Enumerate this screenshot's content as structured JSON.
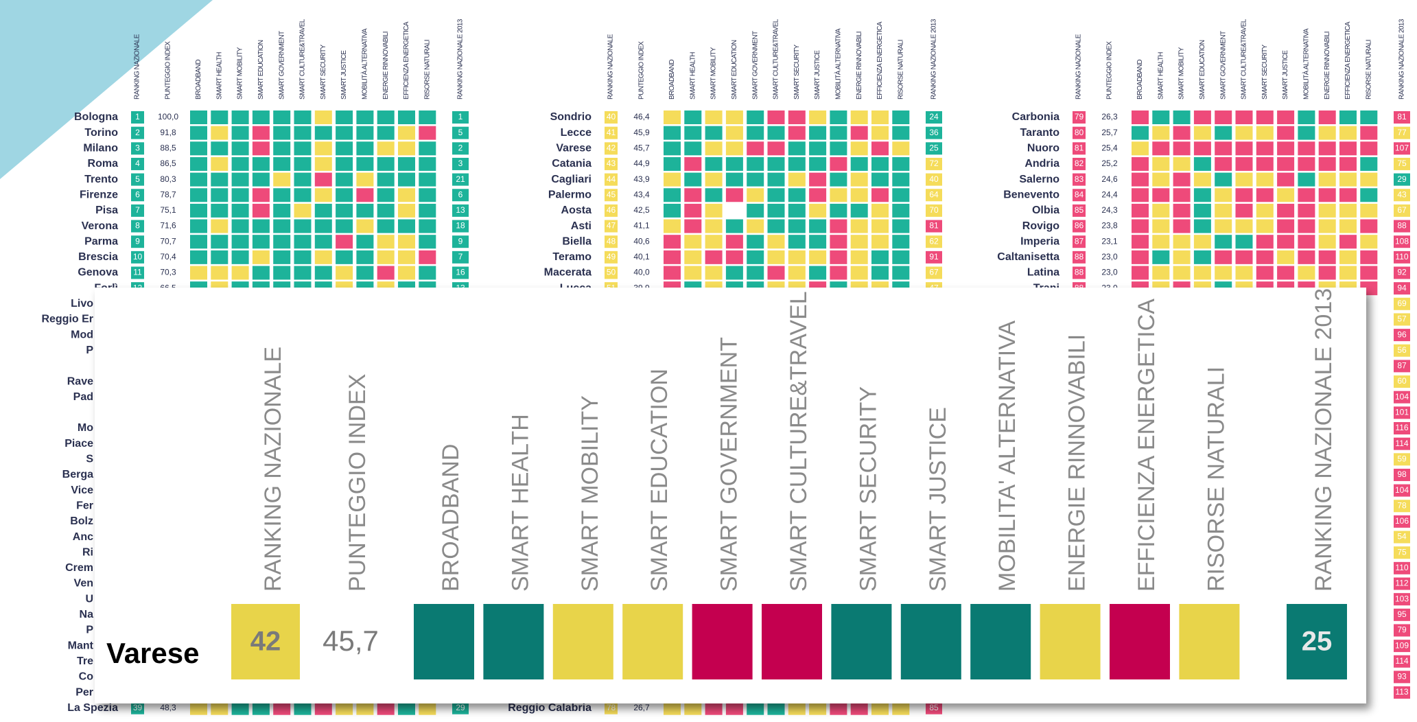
{
  "headers": [
    "RANKING NAZIONALE",
    "PUNTEGGIO INDEX",
    "BROADBAND",
    "SMART HEALTH",
    "SMART MOBILITY",
    "SMART EDUCATION",
    "SMART GOVERNMENT",
    "SMART CULTURE&TRAVEL",
    "SMART SECURITY",
    "SMART JUSTICE",
    "MOBILITÀ ALTERNATIVA",
    "ENERGIE RINNOVABILI",
    "EFFICIENZA ENERGETICA",
    "RISORSE NATURALI",
    "RANKING NAZIONALE 2013"
  ],
  "panels": [
    {
      "rank_color": "g",
      "rows": [
        {
          "name": "Bologna",
          "rank": "1",
          "score": "100,0",
          "cells": "ggggggyggggg",
          "rank2013": "1",
          "color2013": "g"
        },
        {
          "name": "Torino",
          "rank": "2",
          "score": "91,8",
          "cells": "gygrggggggyr",
          "rank2013": "5",
          "color2013": "g"
        },
        {
          "name": "Milano",
          "rank": "3",
          "score": "88,5",
          "cells": "gggrggyggyyg",
          "rank2013": "2",
          "color2013": "g"
        },
        {
          "name": "Roma",
          "rank": "4",
          "score": "86,5",
          "cells": "gyggggyggggg",
          "rank2013": "3",
          "color2013": "g"
        },
        {
          "name": "Trento",
          "rank": "5",
          "score": "80,3",
          "cells": "ggggygrgyggg",
          "rank2013": "21",
          "color2013": "g"
        },
        {
          "name": "Firenze",
          "rank": "6",
          "score": "78,7",
          "cells": "gggrggygrgyg",
          "rank2013": "6",
          "color2013": "g"
        },
        {
          "name": "Pisa",
          "rank": "7",
          "score": "75,1",
          "cells": "gggrgyggggyg",
          "rank2013": "13",
          "color2013": "g"
        },
        {
          "name": "Verona",
          "rank": "8",
          "score": "71,6",
          "cells": "gyggggggyggg",
          "rank2013": "18",
          "color2013": "g"
        },
        {
          "name": "Parma",
          "rank": "9",
          "score": "70,7",
          "cells": "gggggggrgyyg",
          "rank2013": "9",
          "color2013": "g"
        },
        {
          "name": "Brescia",
          "rank": "10",
          "score": "70,4",
          "cells": "gggyggyggyyr",
          "rank2013": "7",
          "color2013": "g"
        },
        {
          "name": "Genova",
          "rank": "11",
          "score": "70,3",
          "cells": "yyyggggygryg",
          "rank2013": "16",
          "color2013": "g"
        },
        {
          "name": "Forlì",
          "rank": "12",
          "score": "66,5",
          "cells": "gygggggygygg",
          "rank2013": "13",
          "color2013": "g"
        }
      ]
    },
    {
      "rank_color": "y",
      "rows": [
        {
          "name": "Sondrio",
          "rank": "40",
          "score": "46,4",
          "cells": "ygyygrrygyyg",
          "rank2013": "24",
          "color2013": "g"
        },
        {
          "name": "Lecce",
          "rank": "41",
          "score": "45,9",
          "cells": "gggyggrggryg",
          "rank2013": "36",
          "color2013": "g"
        },
        {
          "name": "Varese",
          "rank": "42",
          "score": "45,7",
          "cells": "ggyyrrgggyry",
          "rank2013": "25",
          "color2013": "g"
        },
        {
          "name": "Catania",
          "rank": "43",
          "score": "44,9",
          "cells": "grggggggrggg",
          "rank2013": "72",
          "color2013": "y"
        },
        {
          "name": "Cagliari",
          "rank": "44",
          "score": "43,9",
          "cells": "ygygggyrgygg",
          "rank2013": "40",
          "color2013": "y"
        },
        {
          "name": "Palermo",
          "rank": "45",
          "score": "43,4",
          "cells": "grgryggryyrg",
          "rank2013": "64",
          "color2013": "y"
        },
        {
          "name": "Aosta",
          "rank": "46",
          "score": "42,5",
          "cells": "grywgggyggyg",
          "rank2013": "70",
          "color2013": "y"
        },
        {
          "name": "Asti",
          "rank": "47",
          "score": "41,1",
          "cells": "yrygygggryyg",
          "rank2013": "81",
          "color2013": "r"
        },
        {
          "name": "Biella",
          "rank": "48",
          "score": "40,6",
          "cells": "ryyrgyggryyg",
          "rank2013": "62",
          "color2013": "y"
        },
        {
          "name": "Teramo",
          "rank": "49",
          "score": "40,1",
          "cells": "ryrrgyyyrygg",
          "rank2013": "91",
          "color2013": "r"
        },
        {
          "name": "Macerata",
          "rank": "50",
          "score": "40,0",
          "cells": "ryyggrygrygg",
          "rank2013": "67",
          "color2013": "y"
        },
        {
          "name": "Lucca",
          "rank": "51",
          "score": "39,9",
          "cells": "rgyggyyrgyyg",
          "rank2013": "47",
          "color2013": "y"
        }
      ]
    },
    {
      "rank_color": "r",
      "rows": [
        {
          "name": "Carbonia",
          "rank": "79",
          "score": "26,3",
          "cells": "rggrrrrrgrgg",
          "rank2013": "81",
          "color2013": "r"
        },
        {
          "name": "Taranto",
          "rank": "80",
          "score": "25,7",
          "cells": "gyrygyyrgyyr",
          "rank2013": "77",
          "color2013": "y"
        },
        {
          "name": "Nuoro",
          "rank": "81",
          "score": "25,4",
          "cells": "yrrrrrrrrrrr",
          "rank2013": "107",
          "color2013": "r"
        },
        {
          "name": "Andria",
          "rank": "82",
          "score": "25,2",
          "cells": "ryygrrrrrrrg",
          "rank2013": "75",
          "color2013": "y"
        },
        {
          "name": "Salerno",
          "rank": "83",
          "score": "24,6",
          "cells": "ryrygyyrgyyy",
          "rank2013": "29",
          "color2013": "g"
        },
        {
          "name": "Benevento",
          "rank": "84",
          "score": "24,4",
          "cells": "rrrgyrryrrrg",
          "rank2013": "43",
          "color2013": "y"
        },
        {
          "name": "Olbia",
          "rank": "85",
          "score": "24,3",
          "cells": "ryrgyryrryyy",
          "rank2013": "67",
          "color2013": "y"
        },
        {
          "name": "Rovigo",
          "rank": "86",
          "score": "23,8",
          "cells": "ryrgyyyrryyr",
          "rank2013": "88",
          "color2013": "r"
        },
        {
          "name": "Imperia",
          "rank": "87",
          "score": "23,1",
          "cells": "ryyyggrrryry",
          "rank2013": "108",
          "color2013": "r"
        },
        {
          "name": "Caltanisetta",
          "rank": "88",
          "score": "23,0",
          "cells": "rgygrrryrryr",
          "rank2013": "110",
          "color2013": "r"
        },
        {
          "name": "Latina",
          "rank": "88",
          "score": "23,0",
          "cells": "ryyyyyrryryr",
          "rank2013": "92",
          "color2013": "r"
        },
        {
          "name": "Trani",
          "rank": "88",
          "score": "23,0",
          "cells": "ryrygyrrryyr",
          "rank2013": "94",
          "color2013": "r"
        }
      ]
    }
  ],
  "left_fragments": [
    "Livo",
    "Reggio Er",
    "Mod",
    "P",
    null,
    "Rave",
    "Pad",
    null,
    "Mo",
    "Piace",
    "S",
    "Berga",
    "Vice",
    "Fer",
    "Bolz",
    "Anc",
    "Ri",
    "Crem",
    "Ven",
    "U",
    "Na",
    "P",
    "Mant",
    "Tre",
    "Co",
    "Per"
  ],
  "right_ranks": [
    {
      "v": "69",
      "c": "y"
    },
    {
      "v": "57",
      "c": "y"
    },
    {
      "v": "96",
      "c": "r"
    },
    {
      "v": "56",
      "c": "y"
    },
    {
      "v": "87",
      "c": "r"
    },
    {
      "v": "60",
      "c": "y"
    },
    {
      "v": "104",
      "c": "r"
    },
    {
      "v": "101",
      "c": "r"
    },
    {
      "v": "116",
      "c": "r"
    },
    {
      "v": "114",
      "c": "r"
    },
    {
      "v": "59",
      "c": "y"
    },
    {
      "v": "98",
      "c": "r"
    },
    {
      "v": "104",
      "c": "r"
    },
    {
      "v": "78",
      "c": "y"
    },
    {
      "v": "106",
      "c": "r"
    },
    {
      "v": "54",
      "c": "y"
    },
    {
      "v": "75",
      "c": "y"
    },
    {
      "v": "110",
      "c": "r"
    },
    {
      "v": "112",
      "c": "r"
    },
    {
      "v": "103",
      "c": "r"
    },
    {
      "v": "95",
      "c": "r"
    },
    {
      "v": "79",
      "c": "r"
    },
    {
      "v": "109",
      "c": "r"
    },
    {
      "v": "114",
      "c": "r"
    },
    {
      "v": "93",
      "c": "r"
    },
    {
      "v": "113",
      "c": "r"
    }
  ],
  "bottom_rows": [
    {
      "panel": 0,
      "name": "La Spezia",
      "rank": "39",
      "score": "48,3",
      "rank_color": "g",
      "cells": "yyggrgryyrgy",
      "rank2013": "29",
      "color2013": "g"
    },
    {
      "panel": 1,
      "name": "Reggio Calabria",
      "rank": "78",
      "score": "26,7",
      "rank_color": "y",
      "cells": "yyrrggyyrryy",
      "rank2013": "85",
      "color2013": "r"
    }
  ],
  "popup": {
    "headers": [
      "RANKING NAZIONALE",
      "PUNTEGGIO INDEX",
      "BROADBAND",
      "SMART HEALTH",
      "SMART MOBILITY",
      "SMART EDUCATION",
      "SMART GOVERNMENT",
      "SMART CULTURE&TRAVEL",
      "SMART SECURITY",
      "SMART JUSTICE",
      "MOBILITA' ALTERNATIVA",
      "ENERGIE RINNOVABILI",
      "EFFICIENZA ENERGETICA",
      "RISORSE NATURALI",
      "RANKING NAZIONALE 2013"
    ],
    "name": "Varese",
    "rank": "42",
    "score": "45,7",
    "rank_color": "y",
    "cells": "ggyyrrgggyry",
    "rank2013": "25",
    "color2013": "g"
  }
}
